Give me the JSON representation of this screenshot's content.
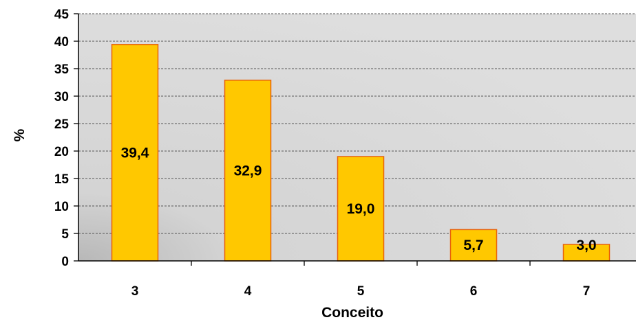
{
  "chart_data": {
    "type": "bar",
    "categories": [
      "3",
      "4",
      "5",
      "6",
      "7"
    ],
    "values": [
      39.4,
      32.9,
      19.0,
      5.7,
      3.0
    ],
    "data_labels": [
      "39,4",
      "32,9",
      "19,0",
      "5,7",
      "3,0"
    ],
    "xlabel": "Conceito",
    "ylabel": "%",
    "ylim": [
      0,
      45
    ],
    "yticks": [
      0,
      5,
      10,
      15,
      20,
      25,
      30,
      35,
      40,
      45
    ],
    "grid": true,
    "legend": "none",
    "colors": {
      "bar_fill": "#FFC800",
      "bar_stroke": "#E8620A",
      "plot_bg": "#D9D9D9",
      "grid": "#555555"
    }
  }
}
